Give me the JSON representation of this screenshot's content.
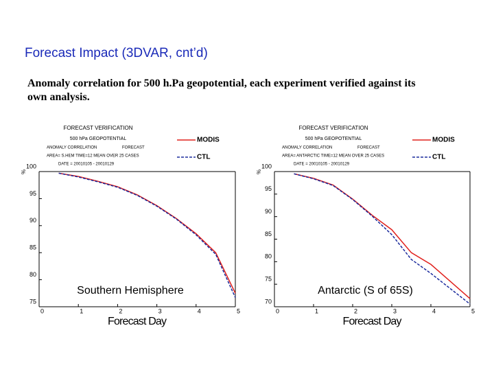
{
  "slide": {
    "title": "Forecast Impact (3DVAR, cnt’d)",
    "subtitle": "Anomaly correlation for 500 h.Pa geopotential, each experiment verified against its own analysis."
  },
  "chart_data": [
    {
      "type": "line",
      "header": {
        "title": "FORECAST VERIFICATION",
        "subtitle": "500 hPa GEOPOTENTIAL",
        "left": "ANOMALY CORRELATION",
        "right": "FORECAST",
        "area": "AREA= S.HEM   TIME=12   MEAN OVER 25 CASES",
        "date": "DATE = 20010105 - 20010129"
      },
      "ylabel": "%",
      "xlabel": "Forecast Day",
      "annotation": "Southern Hemisphere",
      "x": [
        0.5,
        1,
        1.5,
        2,
        2.5,
        3,
        3.5,
        4,
        4.5,
        5
      ],
      "series": [
        {
          "name": "MODIS",
          "color": "#e0201c",
          "dash": false,
          "values": [
            99.7,
            99.1,
            98.2,
            97.2,
            95.7,
            93.7,
            91.3,
            88.5,
            85.0,
            77.5
          ]
        },
        {
          "name": "CTL",
          "color": "#1a2a9c",
          "dash": true,
          "values": [
            99.7,
            99.0,
            98.1,
            97.1,
            95.6,
            93.6,
            91.2,
            88.3,
            84.7,
            76.7
          ]
        }
      ],
      "xlim": [
        0,
        5
      ],
      "xticks": [
        0,
        1,
        2,
        3,
        4,
        5
      ],
      "ylim": [
        75,
        100
      ],
      "yticks": [
        75,
        80,
        85,
        90,
        95,
        100
      ]
    },
    {
      "type": "line",
      "header": {
        "title": "FORECAST VERIFICATION",
        "subtitle": "500 hPa GEOPOTENTIAL",
        "left": "ANOMALY CORRELATION",
        "right": "FORECAST",
        "area": "AREA= ANTARCTIC   TIME=12   MEAN OVER 25 CASES",
        "date": "DATE = 20010105 - 20010129"
      },
      "ylabel": "%",
      "xlabel": "Forecast Day",
      "annotation": "Antarctic (S of 65S)",
      "x": [
        0.5,
        1,
        1.5,
        2,
        2.5,
        3,
        3.5,
        4,
        4.5,
        5
      ],
      "series": [
        {
          "name": "MODIS",
          "color": "#e0201c",
          "dash": false,
          "values": [
            99.5,
            98.5,
            97.0,
            93.9,
            90.3,
            87.1,
            82.0,
            79.4,
            75.6,
            71.8
          ]
        },
        {
          "name": "CTL",
          "color": "#1a2a9c",
          "dash": true,
          "values": [
            99.5,
            98.4,
            96.9,
            93.8,
            90.1,
            86.0,
            80.5,
            77.4,
            74.0,
            70.6
          ]
        }
      ],
      "xlim": [
        0,
        5
      ],
      "xticks": [
        0,
        1,
        2,
        3,
        4,
        5
      ],
      "ylim": [
        70,
        100
      ],
      "yticks": [
        70,
        75,
        80,
        85,
        90,
        95,
        100
      ]
    }
  ]
}
